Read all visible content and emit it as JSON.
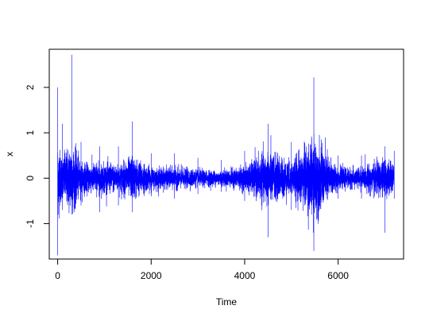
{
  "chart_data": {
    "type": "line",
    "title": "",
    "xlabel": "Time",
    "ylabel": "x",
    "xlim": [
      -180,
      7400
    ],
    "ylim": [
      -1.78,
      2.84
    ],
    "xticks": [
      0,
      2000,
      4000,
      6000
    ],
    "yticks": [
      -1,
      0,
      1,
      2
    ],
    "grid": false,
    "legend": "none",
    "series": [
      {
        "color": "#0000ff",
        "n": 7200,
        "envelope": [
          {
            "x": 0,
            "ymin": -1.7,
            "ymax": 2.0
          },
          {
            "x": 100,
            "ymin": -0.7,
            "ymax": 1.2
          },
          {
            "x": 300,
            "ymin": -0.8,
            "ymax": 2.72
          },
          {
            "x": 500,
            "ymin": -0.6,
            "ymax": 0.8
          },
          {
            "x": 900,
            "ymin": -0.75,
            "ymax": 0.7
          },
          {
            "x": 1300,
            "ymin": -0.6,
            "ymax": 0.7
          },
          {
            "x": 1600,
            "ymin": -0.75,
            "ymax": 1.25
          },
          {
            "x": 2000,
            "ymin": -0.4,
            "ymax": 0.55
          },
          {
            "x": 2500,
            "ymin": -0.45,
            "ymax": 0.55
          },
          {
            "x": 3000,
            "ymin": -0.35,
            "ymax": 0.45
          },
          {
            "x": 3500,
            "ymin": -0.3,
            "ymax": 0.4
          },
          {
            "x": 4000,
            "ymin": -0.5,
            "ymax": 0.6
          },
          {
            "x": 4500,
            "ymin": -1.3,
            "ymax": 1.2
          },
          {
            "x": 5000,
            "ymin": -0.7,
            "ymax": 0.8
          },
          {
            "x": 5480,
            "ymin": -1.6,
            "ymax": 2.22
          },
          {
            "x": 6000,
            "ymin": -0.45,
            "ymax": 0.5
          },
          {
            "x": 6500,
            "ymin": -0.45,
            "ymax": 0.5
          },
          {
            "x": 7000,
            "ymin": -1.2,
            "ymax": 0.7
          },
          {
            "x": 7200,
            "ymin": -0.45,
            "ymax": 0.6
          }
        ]
      }
    ]
  }
}
